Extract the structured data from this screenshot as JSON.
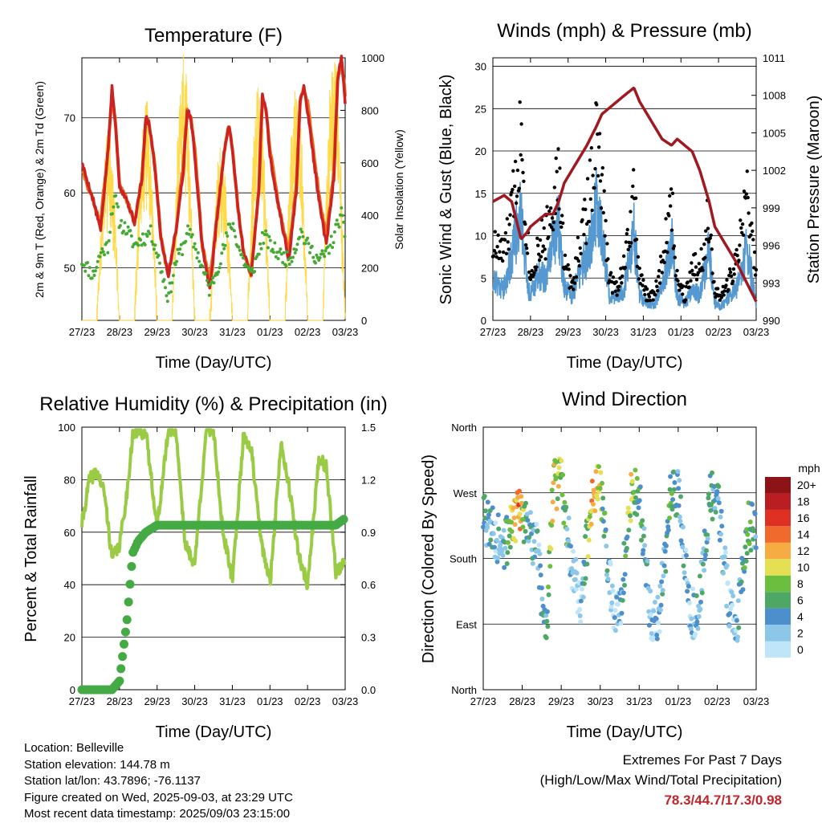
{
  "colors": {
    "temp2m": "#cc2222",
    "temp9m": "#f0701e",
    "dewpoint": "#44aa33",
    "solar": "#ffd840",
    "wind": "#5599d0",
    "gust": "#000000",
    "pressure": "#a01820",
    "rh": "#99cc44",
    "precip": "#44aa44",
    "extreme_value": "#c0242a"
  },
  "panels": {
    "temperature": {
      "title": "Temperature (F)",
      "xlabel": "Time (Day/UTC)",
      "ylabel_left": "2m & 9m T (Red, Orange) & 2m Td (Green)",
      "ylabel_right": "Solar Insolation (Yellow)",
      "ticks_left": [
        "50",
        "60",
        "70"
      ],
      "ticks_right": [
        "0",
        "200",
        "400",
        "600",
        "800",
        "1000"
      ]
    },
    "winds": {
      "title": "Winds (mph) & Pressure (mb)",
      "xlabel": "Time (Day/UTC)",
      "ylabel_left": "Sonic Wind & Gust (Blue, Black)",
      "ylabel_right": "Station Pressure (Maroon)",
      "ticks_left": [
        "0",
        "5",
        "10",
        "15",
        "20",
        "25",
        "30"
      ],
      "ticks_right": [
        "990",
        "993",
        "996",
        "999",
        "1002",
        "1005",
        "1008",
        "1011"
      ]
    },
    "humidity": {
      "title": "Relative Humidity (%) & Precipitation (in)",
      "xlabel": "Time (Day/UTC)",
      "ylabel_left": "Percent & Total Rainfall",
      "ticks_left": [
        "0",
        "20",
        "40",
        "60",
        "80",
        "100"
      ],
      "ticks_right": [
        "0.0",
        "0.3",
        "0.6",
        "0.9",
        "1.2",
        "1.5"
      ]
    },
    "direction": {
      "title": "Wind Direction",
      "xlabel": "Time (Day/UTC)",
      "ylabel_left": "Direction (Colored By Speed)",
      "ticks_left": [
        "North",
        "East",
        "South",
        "West",
        "North"
      ],
      "colorbar": {
        "unit": "mph",
        "labels": [
          "0",
          "2",
          "4",
          "6",
          "8",
          "10",
          "12",
          "14",
          "16",
          "18",
          "20+"
        ],
        "colors": [
          "#bfe6f8",
          "#8cc7ea",
          "#4b8fcc",
          "#4ea865",
          "#6cbe3f",
          "#e5df52",
          "#f7ac43",
          "#ef6a2c",
          "#de3123",
          "#bb1e22",
          "#8c1417"
        ]
      }
    }
  },
  "x_ticks": [
    "27/23",
    "28/23",
    "29/23",
    "30/23",
    "31/23",
    "01/23",
    "02/23",
    "03/23"
  ],
  "chart_data": [
    {
      "type": "line",
      "title": "Temperature (F)",
      "xlabel": "Time (Day/UTC)",
      "ylabel": "2m & 9m T (Red, Orange) & 2m Td (Green)",
      "y2label": "Solar Insolation (Yellow)",
      "x_days": [
        0,
        0.3,
        0.5,
        0.7,
        0.8,
        0.9,
        1.0,
        1.2,
        1.4,
        1.6,
        1.7,
        1.8,
        1.95,
        2.1,
        2.3,
        2.5,
        2.7,
        2.8,
        2.9,
        3.0,
        3.2,
        3.4,
        3.6,
        3.8,
        3.9,
        4.0,
        4.15,
        4.3,
        4.5,
        4.7,
        4.8,
        4.9,
        5.0,
        5.2,
        5.5,
        5.7,
        5.8,
        5.9,
        6.0,
        6.3,
        6.5,
        6.7,
        6.8,
        6.9,
        7.0
      ],
      "series": [
        {
          "name": "2m T",
          "values": [
            64,
            59,
            55,
            66,
            74,
            69,
            61,
            59,
            56,
            62,
            70,
            69,
            63,
            54,
            49,
            55,
            63,
            71,
            70,
            65,
            53,
            47,
            57,
            66,
            69,
            66,
            58,
            52,
            49,
            60,
            73,
            71,
            65,
            59,
            51,
            60,
            72,
            74,
            71,
            59,
            53,
            62,
            75,
            78,
            72
          ]
        },
        {
          "name": "9m T",
          "values": [
            63,
            59,
            56,
            66,
            73,
            69,
            61,
            59,
            56,
            62,
            70,
            69,
            63,
            54,
            49,
            55,
            64,
            71,
            70,
            66,
            53,
            48,
            57,
            66,
            69,
            66,
            58,
            52,
            49,
            60,
            73,
            71,
            66,
            59,
            52,
            61,
            72,
            74,
            72,
            60,
            54,
            63,
            75,
            78,
            73
          ]
        },
        {
          "name": "2m Td",
          "values": [
            51,
            49,
            52,
            53,
            58,
            59,
            56,
            55,
            53,
            54,
            54,
            55,
            53,
            50,
            46,
            51,
            53,
            55,
            54,
            53,
            50,
            47,
            50,
            53,
            55,
            56,
            53,
            51,
            49,
            52,
            54,
            54,
            53,
            52,
            51,
            53,
            55,
            54,
            53,
            51,
            52,
            54,
            56,
            57,
            54
          ]
        }
      ],
      "solar_peak_days": [
        0.7,
        1.7,
        2.7,
        3.7,
        4.7,
        5.7,
        6.7
      ],
      "solar_peak_values": [
        700,
        820,
        1000,
        650,
        870,
        920,
        1000
      ],
      "ylim": [
        43,
        78
      ],
      "y2lim": [
        0,
        1000
      ],
      "xlim": [
        0,
        7
      ]
    },
    {
      "type": "scatter",
      "title": "Winds (mph) & Pressure (mb)",
      "xlabel": "Time (Day/UTC)",
      "ylabel": "Sonic Wind & Gust (Blue, Black)",
      "y2label": "Station Pressure (Maroon)",
      "x_days": [
        0,
        0.3,
        0.5,
        0.75,
        0.9,
        1.0,
        1.2,
        1.4,
        1.6,
        1.75,
        1.9,
        2.1,
        2.3,
        2.5,
        2.75,
        2.9,
        3.1,
        3.3,
        3.5,
        3.75,
        3.9,
        4.1,
        4.3,
        4.5,
        4.75,
        4.9,
        5.1,
        5.3,
        5.5,
        5.75,
        5.9,
        6.1,
        6.3,
        6.5,
        6.75,
        7.0
      ],
      "series": [
        {
          "name": "wind",
          "values": [
            5,
            4,
            8,
            14,
            5,
            3,
            6,
            5,
            10,
            12,
            4,
            3,
            6,
            8,
            14,
            11,
            3,
            3,
            4,
            11,
            3,
            2,
            2,
            4,
            10,
            3,
            2,
            4,
            3,
            9,
            2,
            2,
            3,
            4,
            9,
            2
          ]
        },
        {
          "name": "gust",
          "values": [
            9,
            8,
            13,
            23,
            11,
            5,
            9,
            10,
            15,
            17,
            7,
            4,
            9,
            13,
            22,
            16,
            5,
            4,
            7,
            15,
            5,
            3,
            3,
            7,
            14,
            5,
            3,
            7,
            6,
            13,
            3,
            3,
            5,
            7,
            16,
            5
          ]
        },
        {
          "name": "pressure",
          "values": [
            999.5,
            1000.0,
            999.5,
            996.5,
            997.0,
            997.5,
            998.0,
            998.5,
            998.5,
            999.5,
            1001.0,
            1002.0,
            1003.0,
            1004.0,
            1005.5,
            1006.5,
            1007.0,
            1007.5,
            1008.0,
            1008.6,
            1007.5,
            1006.5,
            1005.5,
            1004.5,
            1004.0,
            1004.5,
            1004.0,
            1003.5,
            1002.0,
            999.5,
            997.5,
            996.5,
            995.5,
            994.5,
            993.0,
            991.5
          ]
        }
      ],
      "ylim": [
        0,
        31
      ],
      "y2lim": [
        990,
        1011
      ],
      "xlim": [
        0,
        7
      ]
    },
    {
      "type": "line",
      "title": "Relative Humidity (%) & Precipitation (in)",
      "xlabel": "Time (Day/UTC)",
      "ylabel": "Percent & Total Rainfall",
      "x_days": [
        0,
        0.2,
        0.4,
        0.6,
        0.8,
        1.0,
        1.2,
        1.35,
        1.5,
        1.7,
        2.0,
        2.3,
        2.5,
        2.75,
        3.0,
        3.3,
        3.5,
        3.75,
        4.0,
        4.3,
        4.5,
        4.75,
        5.0,
        5.3,
        5.5,
        5.75,
        6.0,
        6.3,
        6.5,
        6.75,
        7.0
      ],
      "series": [
        {
          "name": "RH",
          "values": [
            63,
            80,
            83,
            75,
            50,
            55,
            75,
            97,
            98,
            98,
            62,
            99,
            99,
            55,
            48,
            98,
            99,
            60,
            42,
            97,
            92,
            58,
            40,
            95,
            78,
            52,
            40,
            88,
            85,
            45,
            48
          ]
        },
        {
          "name": "Total Rainfall",
          "values": [
            0,
            0,
            0,
            0,
            0,
            0.05,
            0.4,
            0.78,
            0.85,
            0.9,
            0.94,
            0.94,
            0.94,
            0.94,
            0.94,
            0.94,
            0.94,
            0.94,
            0.94,
            0.94,
            0.94,
            0.94,
            0.94,
            0.94,
            0.94,
            0.94,
            0.94,
            0.94,
            0.94,
            0.94,
            0.98
          ]
        }
      ],
      "ylim": [
        0,
        100
      ],
      "y2lim": [
        0,
        1.5
      ],
      "xlim": [
        0,
        7
      ]
    },
    {
      "type": "scatter",
      "title": "Wind Direction",
      "xlabel": "Time (Day/UTC)",
      "ylabel": "Direction (Colored By Speed)",
      "x_days": [
        0,
        0.3,
        0.55,
        0.75,
        0.9,
        1.15,
        1.4,
        1.6,
        1.8,
        2.0,
        2.3,
        2.5,
        2.8,
        3.0,
        3.3,
        3.5,
        3.8,
        4.0,
        4.3,
        4.5,
        4.8,
        5.0,
        5.3,
        5.5,
        5.8,
        6.0,
        6.3,
        6.5,
        6.8,
        7.0
      ],
      "direction_deg": [
        240,
        210,
        200,
        225,
        250,
        215,
        200,
        60,
        280,
        285,
        160,
        125,
        270,
        275,
        120,
        110,
        265,
        270,
        100,
        95,
        265,
        270,
        110,
        95,
        260,
        270,
        110,
        90,
        230,
        210
      ],
      "speed_mph": [
        6,
        4,
        5,
        10,
        15,
        4,
        4,
        5,
        12,
        9,
        2,
        2,
        13,
        10,
        2,
        3,
        10,
        7,
        3,
        3,
        7,
        5,
        3,
        4,
        6,
        5,
        3,
        3,
        9,
        4
      ],
      "ylim": [
        0,
        360
      ],
      "xlim": [
        0,
        7
      ]
    }
  ],
  "info": {
    "location": "Location: Belleville",
    "elevation": "Station elevation: 144.78 m",
    "latlon": "Station lat/lon: 43.7896; -76.1137",
    "created": "Figure created on Wed, 2025-09-03, at 23:29 UTC",
    "recent": "Most recent data timestamp: 2025/09/03 23:15:00"
  },
  "extremes": {
    "title": "Extremes For Past 7 Days",
    "subtitle": "(High/Low/Max Wind/Total Precipitation)",
    "value": "78.3/44.7/17.3/0.98"
  }
}
